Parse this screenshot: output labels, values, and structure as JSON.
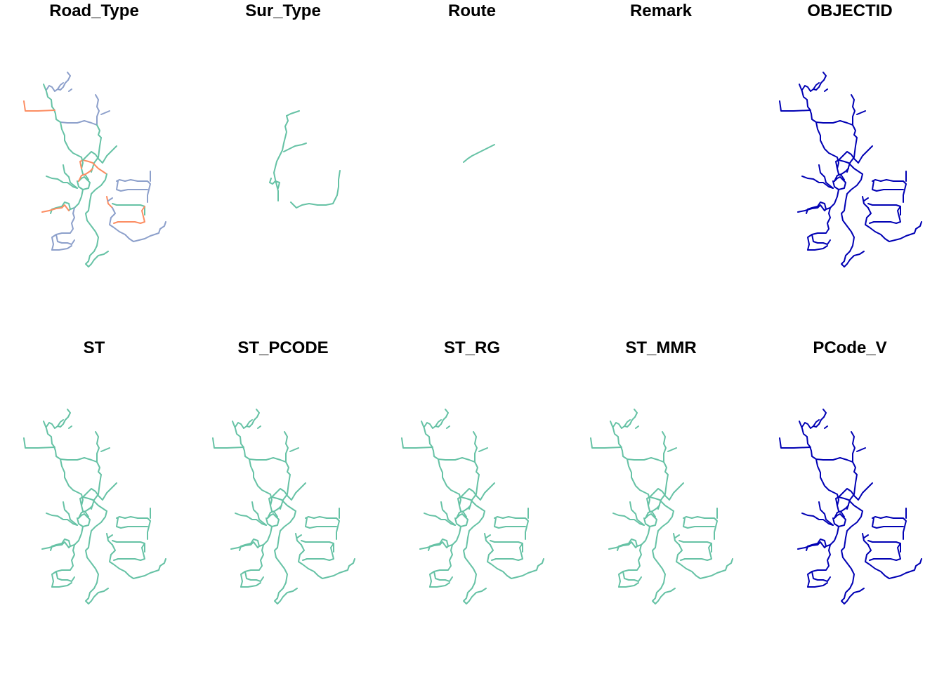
{
  "colors": {
    "teal": "#66c2a5",
    "orange": "#fc8d62",
    "purple": "#8da0cb",
    "navy": "#0000b4"
  },
  "panels": [
    {
      "title": "Road_Type",
      "style": "categorical"
    },
    {
      "title": "Sur_Type",
      "style": "partial"
    },
    {
      "title": "Route",
      "style": "route"
    },
    {
      "title": "Remark",
      "style": "empty"
    },
    {
      "title": "OBJECTID",
      "style": "navy"
    },
    {
      "title": "ST",
      "style": "teal"
    },
    {
      "title": "ST_PCODE",
      "style": "teal"
    },
    {
      "title": "ST_RG",
      "style": "teal"
    },
    {
      "title": "ST_MMR",
      "style": "teal"
    },
    {
      "title": "PCode_V",
      "style": "navy"
    }
  ]
}
